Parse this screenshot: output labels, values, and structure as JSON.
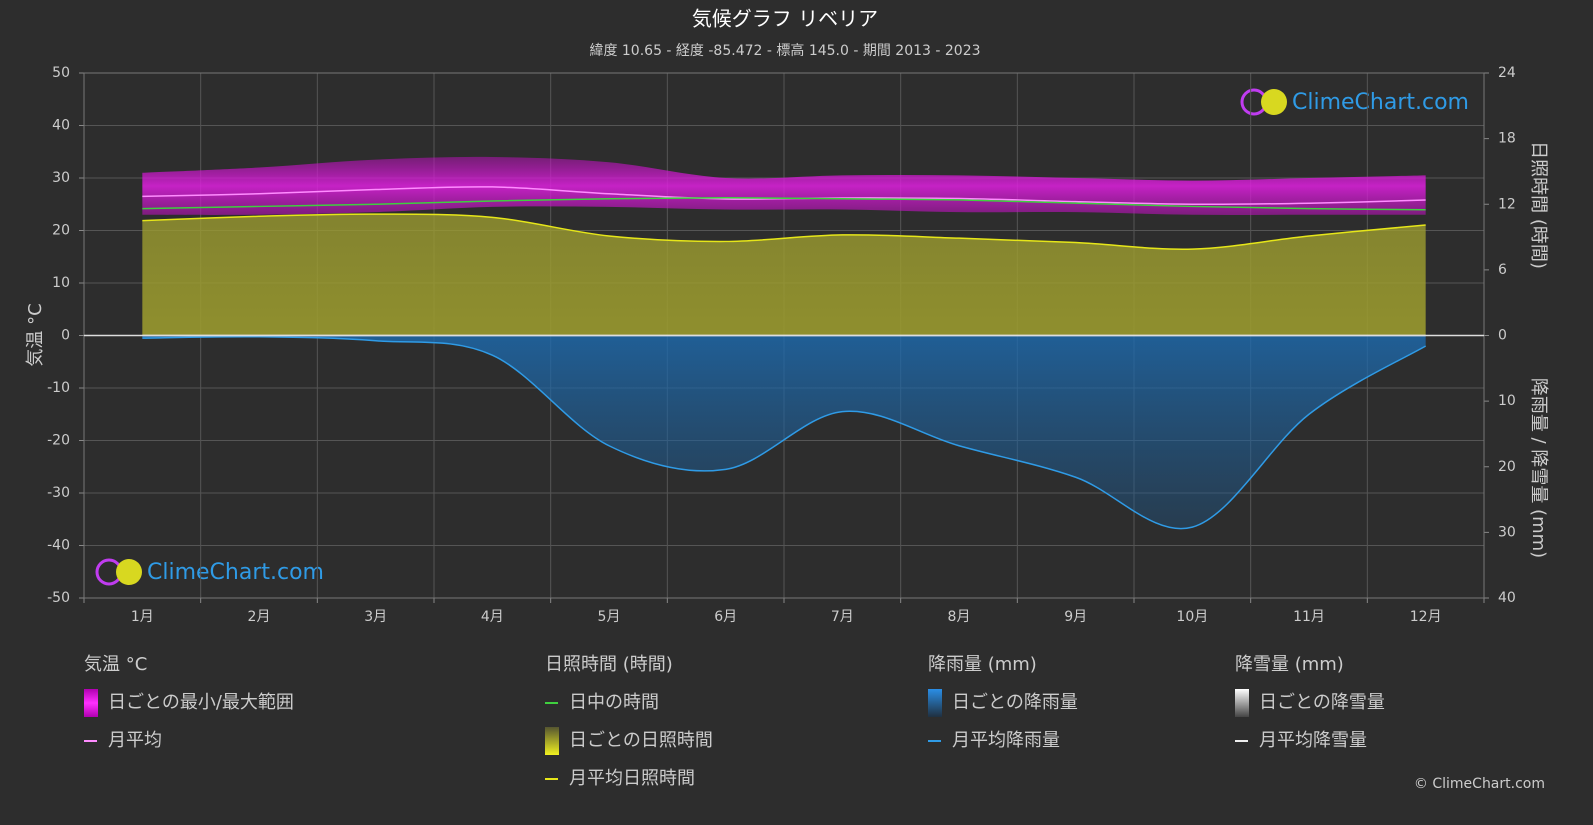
{
  "chart_data": {
    "type": "climate",
    "title": "気候グラフ リベリア",
    "subtitle": "緯度 10.65 - 経度 -85.472 - 標高 145.0 - 期間 2013 - 2023",
    "categories": [
      "1月",
      "2月",
      "3月",
      "4月",
      "5月",
      "6月",
      "7月",
      "8月",
      "9月",
      "10月",
      "11月",
      "12月"
    ],
    "y_label": "気温 °C",
    "ylim": [
      -50,
      50
    ],
    "yticks": [
      -50,
      -40,
      -30,
      -20,
      -10,
      0,
      10,
      20,
      30,
      40,
      50
    ],
    "y2_label": "日照時間 (時間)",
    "y2lim": [
      0,
      24
    ],
    "y2ticks": [
      0,
      6,
      12,
      18,
      24
    ],
    "y3_label": "降雨量 / 降雪量 (mm)",
    "y3lim": [
      0,
      40
    ],
    "y3ticks": [
      10,
      20,
      30,
      40
    ],
    "grid": true,
    "groups": [
      {
        "title": "気温 °C",
        "series": [
          {
            "name": "日ごとの最小/最大範囲",
            "color": "#d61ad6",
            "axis": "y",
            "max": [
              31,
              32,
              33.5,
              34,
              33,
              30,
              30.5,
              30.5,
              30,
              29.5,
              30,
              30.5
            ],
            "min": [
              23,
              23,
              23.5,
              24.5,
              24.5,
              24,
              24,
              23.5,
              23.5,
              23,
              23,
              23
            ]
          },
          {
            "name": "月平均",
            "color": "#ff8cff",
            "axis": "y",
            "values": [
              26.5,
              27,
              27.8,
              28.3,
              27,
              26,
              26.2,
              26.1,
              25.5,
              25,
              25.2,
              25.8
            ]
          }
        ]
      },
      {
        "title": "日照時間 (時間)",
        "series": [
          {
            "name": "日中の時間",
            "color": "#3fcf3f",
            "axis": "y2",
            "values": [
              11.6,
              11.8,
              12.0,
              12.3,
              12.5,
              12.6,
              12.5,
              12.4,
              12.1,
              11.8,
              11.6,
              11.5
            ]
          },
          {
            "name": "日ごとの日照時間",
            "color": "#a8a835"
          },
          {
            "name": "月平均日照時間",
            "color": "#e6e619",
            "axis": "y2",
            "values": [
              10.5,
              10.9,
              11.1,
              10.8,
              9.1,
              8.6,
              9.2,
              8.9,
              8.5,
              7.9,
              9.1,
              10.1
            ]
          }
        ]
      },
      {
        "title": "降雨量 (mm)",
        "series": [
          {
            "name": "日ごとの降雨量",
            "color": "#1d6bb0"
          },
          {
            "name": "月平均降雨量",
            "color": "#2f9be6",
            "axis": "y3",
            "values": [
              0.4,
              0.2,
              0.8,
              3.0,
              16.8,
              20.4,
              11.6,
              16.8,
              21.6,
              29.2,
              12.0,
              1.6
            ]
          }
        ]
      },
      {
        "title": "降雪量 (mm)",
        "series": [
          {
            "name": "日ごとの降雪量",
            "color": "#dddddd"
          },
          {
            "name": "月平均降雪量",
            "color": "#eeeeee",
            "axis": "y3",
            "values": [
              0,
              0,
              0,
              0,
              0,
              0,
              0,
              0,
              0,
              0,
              0,
              0
            ]
          }
        ]
      }
    ],
    "watermark": "ClimeChart.com",
    "copyright": "© ClimeChart.com"
  }
}
